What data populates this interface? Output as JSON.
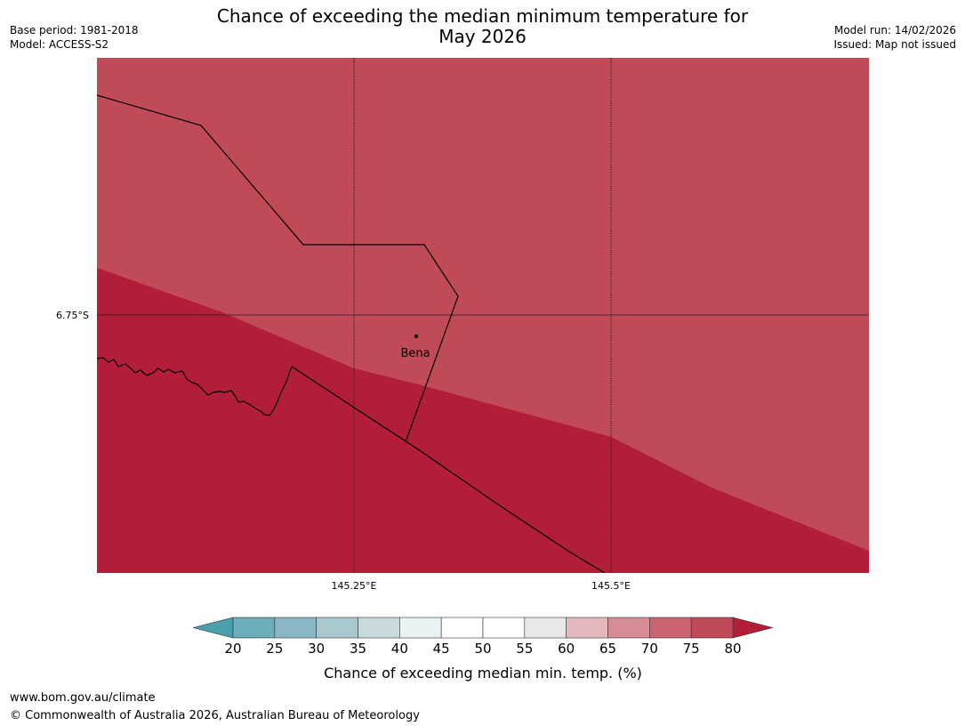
{
  "header": {
    "title_line1": "Chance of exceeding the median minimum temperature for",
    "title_line2": "May 2026",
    "base_period": "Base period: 1981-2018",
    "model": "Model: ACCESS-S2",
    "model_run": "Model run: 14/02/2026",
    "issued": "Issued: Map not issued"
  },
  "map": {
    "lat_label": "6.75°S",
    "lon_labels": [
      "145.25°E",
      "145.5°E"
    ],
    "place_label": "Bena",
    "colors": {
      "band_70_75": "#c04a58",
      "band_above_80": "#b21e3a"
    }
  },
  "legend": {
    "ticks": [
      "20",
      "25",
      "30",
      "35",
      "40",
      "45",
      "50",
      "55",
      "60",
      "65",
      "70",
      "75",
      "80"
    ],
    "title": "Chance of exceeding median min. temp. (%)",
    "low_extend_color": "#4a9fac",
    "high_extend_color": "#b21e3a",
    "colors": [
      "#6aadbb",
      "#8ab7c4",
      "#a9c8ce",
      "#c9dadd",
      "#e9f1f3",
      "#ffffff",
      "#ffffff",
      "#e8e8e8",
      "#e4b9bd",
      "#d78c95",
      "#cb6470",
      "#c04a58"
    ]
  },
  "footer": {
    "url": "www.bom.gov.au/climate",
    "copyright": "© Commonwealth of Australia 2026, Australian Bureau of Meteorology"
  }
}
